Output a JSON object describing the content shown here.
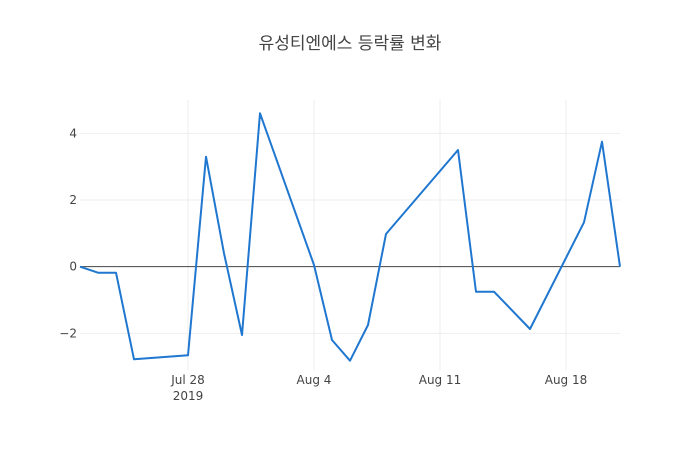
{
  "chart_data": {
    "type": "line",
    "title": "유성티엔에스 등락률 변화",
    "xlabel": "",
    "ylabel": "",
    "x": [
      "2019-07-22",
      "2019-07-23",
      "2019-07-24",
      "2019-07-25",
      "2019-07-28",
      "2019-07-29",
      "2019-07-30",
      "2019-07-31",
      "2019-08-01",
      "2019-08-04",
      "2019-08-05",
      "2019-08-06",
      "2019-08-07",
      "2019-08-08",
      "2019-08-12",
      "2019-08-13",
      "2019-08-14",
      "2019-08-16",
      "2019-08-19",
      "2019-08-20",
      "2019-08-21"
    ],
    "series": [
      {
        "values": [
          0,
          -0.18,
          -0.18,
          -2.78,
          -2.66,
          3.3,
          0.4,
          -2.05,
          4.6,
          0.05,
          -2.2,
          -2.82,
          -1.75,
          0.98,
          3.5,
          -0.75,
          -0.75,
          -1.87,
          1.33,
          3.75,
          0
        ]
      }
    ],
    "xlim": [
      "2019-07-22",
      "2019-08-21"
    ],
    "ylim": [
      -3.1,
      5.0
    ],
    "x_ticks": [
      {
        "date": "2019-07-28",
        "label": "Jul 28",
        "sublabel": "2019"
      },
      {
        "date": "2019-08-04",
        "label": "Aug 4",
        "sublabel": ""
      },
      {
        "date": "2019-08-11",
        "label": "Aug 11",
        "sublabel": ""
      },
      {
        "date": "2019-08-18",
        "label": "Aug 18",
        "sublabel": ""
      }
    ],
    "y_ticks": [
      {
        "value": 4,
        "label": "4"
      },
      {
        "value": 2,
        "label": "2"
      },
      {
        "value": 0,
        "label": "0"
      },
      {
        "value": -2,
        "label": "−2"
      }
    ],
    "grid": true,
    "zero_line": true,
    "line_color": "#1f77d0"
  }
}
